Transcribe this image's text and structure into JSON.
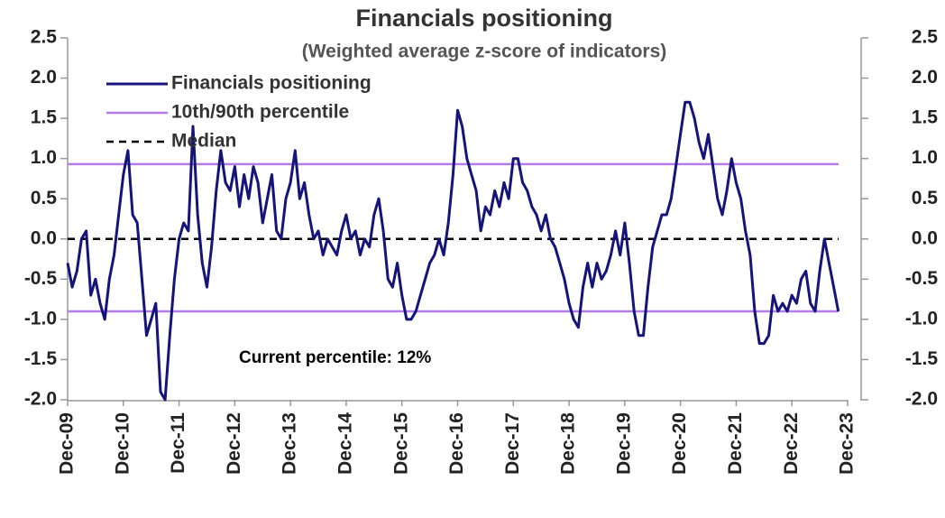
{
  "chart_data": {
    "type": "line",
    "title": "Financials positioning",
    "subtitle": "(Weighted average z-score of indicators)",
    "annotation": "Current percentile: 12%",
    "x": [
      "Dec-09",
      "Jan-10",
      "Feb-10",
      "Mar-10",
      "Apr-10",
      "May-10",
      "Jun-10",
      "Jul-10",
      "Aug-10",
      "Sep-10",
      "Oct-10",
      "Nov-10",
      "Dec-10",
      "Jan-11",
      "Feb-11",
      "Mar-11",
      "Apr-11",
      "May-11",
      "Jun-11",
      "Jul-11",
      "Aug-11",
      "Sep-11",
      "Oct-11",
      "Nov-11",
      "Dec-11",
      "Jan-12",
      "Feb-12",
      "Mar-12",
      "Apr-12",
      "May-12",
      "Jun-12",
      "Jul-12",
      "Aug-12",
      "Sep-12",
      "Oct-12",
      "Nov-12",
      "Dec-12",
      "Jan-13",
      "Feb-13",
      "Mar-13",
      "Apr-13",
      "May-13",
      "Jun-13",
      "Jul-13",
      "Aug-13",
      "Sep-13",
      "Oct-13",
      "Nov-13",
      "Dec-13",
      "Jan-14",
      "Feb-14",
      "Mar-14",
      "Apr-14",
      "May-14",
      "Jun-14",
      "Jul-14",
      "Aug-14",
      "Sep-14",
      "Oct-14",
      "Nov-14",
      "Dec-14",
      "Jan-15",
      "Feb-15",
      "Mar-15",
      "Apr-15",
      "May-15",
      "Jun-15",
      "Jul-15",
      "Aug-15",
      "Sep-15",
      "Oct-15",
      "Nov-15",
      "Dec-15",
      "Jan-16",
      "Feb-16",
      "Mar-16",
      "Apr-16",
      "May-16",
      "Jun-16",
      "Jul-16",
      "Aug-16",
      "Sep-16",
      "Oct-16",
      "Nov-16",
      "Dec-16",
      "Jan-17",
      "Feb-17",
      "Mar-17",
      "Apr-17",
      "May-17",
      "Jun-17",
      "Jul-17",
      "Aug-17",
      "Sep-17",
      "Oct-17",
      "Nov-17",
      "Dec-17",
      "Jan-18",
      "Feb-18",
      "Mar-18",
      "Apr-18",
      "May-18",
      "Jun-18",
      "Jul-18",
      "Aug-18",
      "Sep-18",
      "Oct-18",
      "Nov-18",
      "Dec-18",
      "Jan-19",
      "Feb-19",
      "Mar-19",
      "Apr-19",
      "May-19",
      "Jun-19",
      "Jul-19",
      "Aug-19",
      "Sep-19",
      "Oct-19",
      "Nov-19",
      "Dec-19",
      "Jan-20",
      "Feb-20",
      "Mar-20",
      "Apr-20",
      "May-20",
      "Jun-20",
      "Jul-20",
      "Aug-20",
      "Sep-20",
      "Oct-20",
      "Nov-20",
      "Dec-20",
      "Jan-21",
      "Feb-21",
      "Mar-21",
      "Apr-21",
      "May-21",
      "Jun-21",
      "Jul-21",
      "Aug-21",
      "Sep-21",
      "Oct-21",
      "Nov-21",
      "Dec-21",
      "Jan-22",
      "Feb-22",
      "Mar-22",
      "Apr-22",
      "May-22",
      "Jun-22",
      "Jul-22",
      "Aug-22",
      "Sep-22",
      "Oct-22",
      "Nov-22",
      "Dec-22",
      "Jan-23",
      "Feb-23",
      "Mar-23",
      "Apr-23",
      "May-23",
      "Jun-23",
      "Jul-23",
      "Aug-23",
      "Sep-23",
      "Oct-23"
    ],
    "series": [
      {
        "name": "Financials positioning",
        "color": "#14147a",
        "values": [
          -0.3,
          -0.6,
          -0.4,
          0.0,
          0.1,
          -0.7,
          -0.5,
          -0.8,
          -1.0,
          -0.5,
          -0.2,
          0.3,
          0.8,
          1.1,
          0.3,
          0.2,
          -0.5,
          -1.2,
          -1.0,
          -0.8,
          -1.9,
          -2.0,
          -1.2,
          -0.5,
          0.0,
          0.2,
          0.1,
          1.4,
          0.3,
          -0.3,
          -0.6,
          -0.1,
          0.6,
          1.1,
          0.7,
          0.6,
          0.9,
          0.4,
          0.8,
          0.5,
          0.9,
          0.7,
          0.2,
          0.5,
          0.8,
          0.1,
          0.0,
          0.5,
          0.7,
          1.1,
          0.5,
          0.7,
          0.3,
          0.0,
          0.1,
          -0.2,
          0.0,
          -0.1,
          -0.2,
          0.1,
          0.3,
          0.0,
          0.1,
          -0.2,
          0.0,
          -0.1,
          0.3,
          0.5,
          0.1,
          -0.5,
          -0.6,
          -0.3,
          -0.7,
          -1.0,
          -1.0,
          -0.9,
          -0.7,
          -0.5,
          -0.3,
          -0.2,
          0.0,
          -0.2,
          0.2,
          0.8,
          1.6,
          1.4,
          1.0,
          0.8,
          0.6,
          0.1,
          0.4,
          0.3,
          0.6,
          0.4,
          0.7,
          0.5,
          1.0,
          1.0,
          0.7,
          0.6,
          0.4,
          0.3,
          0.1,
          0.3,
          0.0,
          -0.1,
          -0.3,
          -0.5,
          -0.8,
          -1.0,
          -1.1,
          -0.6,
          -0.3,
          -0.6,
          -0.3,
          -0.5,
          -0.4,
          -0.2,
          0.1,
          -0.2,
          0.2,
          -0.3,
          -0.9,
          -1.2,
          -1.2,
          -0.6,
          -0.1,
          0.1,
          0.3,
          0.3,
          0.5,
          0.9,
          1.3,
          1.7,
          1.7,
          1.5,
          1.2,
          1.0,
          1.3,
          0.9,
          0.5,
          0.3,
          0.6,
          1.0,
          0.7,
          0.5,
          0.1,
          -0.2,
          -0.9,
          -1.3,
          -1.3,
          -1.2,
          -0.7,
          -0.9,
          -0.8,
          -0.9,
          -0.7,
          -0.8,
          -0.5,
          -0.4,
          -0.8,
          -0.9,
          -0.4,
          0.0,
          -0.3,
          -0.6,
          -0.9
        ]
      }
    ],
    "reference_lines": [
      {
        "name": "10th/90th percentile",
        "color": "#b57be8",
        "style": "solid",
        "values": [
          0.93,
          -0.9
        ]
      },
      {
        "name": "Median",
        "color": "#000000",
        "style": "dashed",
        "values": [
          0
        ]
      }
    ],
    "xticks": [
      "Dec-09",
      "Dec-10",
      "Dec-11",
      "Dec-12",
      "Dec-13",
      "Dec-14",
      "Dec-15",
      "Dec-16",
      "Dec-17",
      "Dec-18",
      "Dec-19",
      "Dec-20",
      "Dec-21",
      "Dec-22",
      "Dec-23"
    ],
    "ylim": [
      -2.0,
      2.5
    ],
    "yticks": [
      {
        "value": -2,
        "label": "-2.0"
      },
      -1.5,
      {
        "value": -1,
        "label": "-1.0"
      },
      -0.5,
      {
        "value": 0,
        "label": "0.0"
      },
      0.5,
      {
        "value": 1,
        "label": "1.0"
      },
      1.5,
      {
        "value": 2,
        "label": "2.0"
      },
      2.5
    ],
    "y2lim": [
      -2.0,
      2.5
    ],
    "y2ticks": [
      {
        "value": -2,
        "label": "-2.0"
      },
      -1.5,
      {
        "value": -1,
        "label": "-1.0"
      },
      -0.5,
      {
        "value": 0,
        "label": "0.0"
      },
      0.5,
      {
        "value": 1,
        "label": "1.0"
      },
      1.5,
      {
        "value": 2,
        "label": "2.0"
      },
      2.5
    ],
    "grid": false,
    "legend": "top-left"
  }
}
